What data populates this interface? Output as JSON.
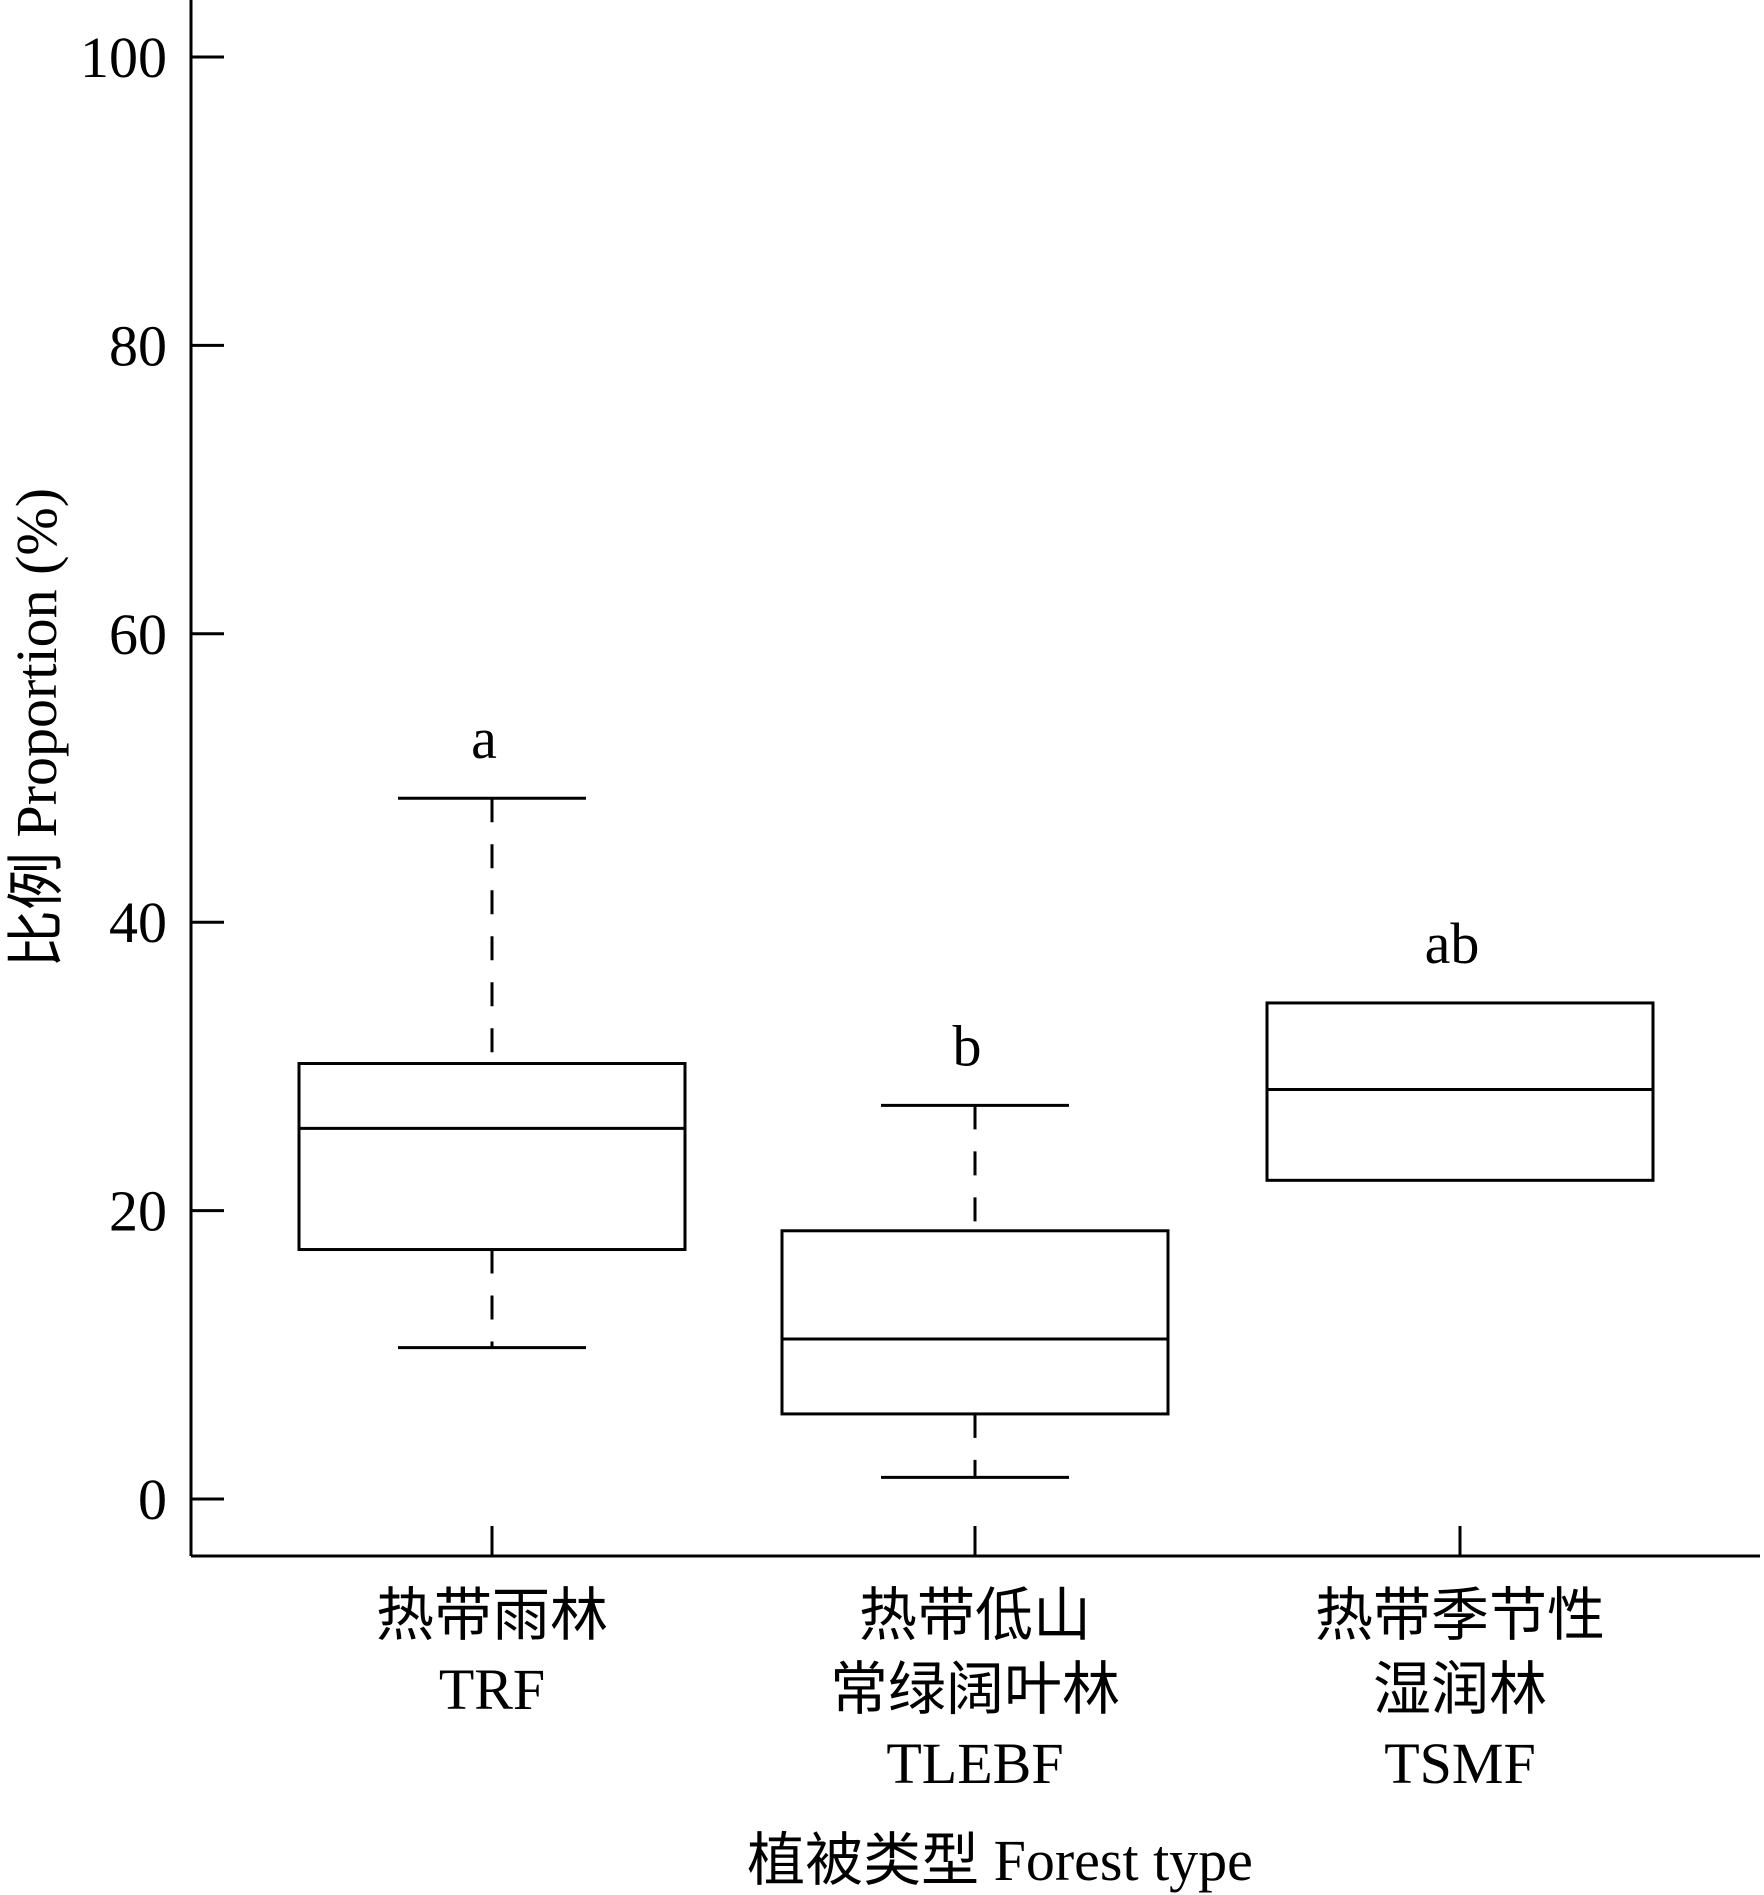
{
  "chart_data": {
    "type": "box",
    "ylabel": "比例 Proportion (%)",
    "xlabel": "植被类型 Forest type",
    "ylim": [
      -4,
      104
    ],
    "yticks": [
      0,
      20,
      40,
      60,
      80,
      100
    ],
    "grid": false,
    "colors": {
      "line": "#000000",
      "fill": "#ffffff"
    },
    "categories": [
      {
        "label_lines": [
          "热带雨林",
          "TRF"
        ],
        "whisker_low": 10.5,
        "q1": 17.3,
        "median": 25.7,
        "q3": 30.2,
        "whisker_high": 48.6,
        "significance": "a"
      },
      {
        "label_lines": [
          "热带低山",
          "常绿阔叶林",
          "TLEBF"
        ],
        "whisker_low": 1.5,
        "q1": 5.9,
        "median": 11.1,
        "q3": 18.6,
        "whisker_high": 27.3,
        "significance": "b"
      },
      {
        "label_lines": [
          "热带季节性",
          "湿润林",
          "TSMF"
        ],
        "whisker_low": null,
        "q1": 22.1,
        "median": 28.4,
        "q3": 34.4,
        "whisker_high": null,
        "significance": "ab"
      }
    ]
  }
}
